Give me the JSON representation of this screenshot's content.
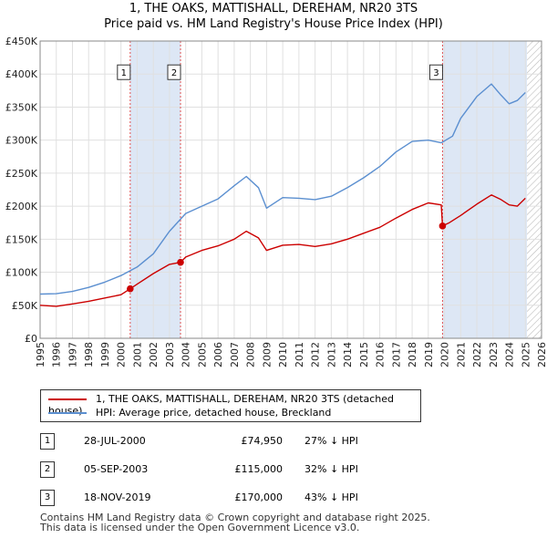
{
  "chart_title_line1": "1, THE OAKS, MATTISHALL, DEREHAM, NR20 3TS",
  "chart_title_line2": "Price paid vs. HM Land Registry's House Price Index (HPI)",
  "chart_data": {
    "type": "line",
    "title": "1, THE OAKS, MATTISHALL, DEREHAM, NR20 3TS — Price paid vs. HM Land Registry's House Price Index (HPI)",
    "xlabel": "",
    "ylabel": "",
    "xlim": [
      1995,
      2026
    ],
    "ylim": [
      0,
      450000
    ],
    "y_ticks": [
      0,
      50000,
      100000,
      150000,
      200000,
      250000,
      300000,
      350000,
      400000,
      450000
    ],
    "y_tick_labels": [
      "£0",
      "£50K",
      "£100K",
      "£150K",
      "£200K",
      "£250K",
      "£300K",
      "£350K",
      "£400K",
      "£450K"
    ],
    "x_ticks": [
      1995,
      1996,
      1997,
      1998,
      1999,
      2000,
      2001,
      2002,
      2003,
      2004,
      2005,
      2006,
      2007,
      2008,
      2009,
      2010,
      2011,
      2012,
      2013,
      2014,
      2015,
      2016,
      2017,
      2018,
      2019,
      2020,
      2021,
      2022,
      2023,
      2024,
      2025,
      2026
    ],
    "x_tick_labels": [
      "1995",
      "1996",
      "1997",
      "1998",
      "1999",
      "2000",
      "2001",
      "2002",
      "2003",
      "2004",
      "2005",
      "2006",
      "2007",
      "2008",
      "2009",
      "2010",
      "2011",
      "2012",
      "2013",
      "2014",
      "2015",
      "2016",
      "2017",
      "2018",
      "2019",
      "2020",
      "2021",
      "2022",
      "2023",
      "2024",
      "2025",
      "2026"
    ],
    "grid": true,
    "shaded_ranges": [
      [
        2000.57,
        2003.68
      ],
      [
        2019.88,
        2025.1
      ]
    ],
    "hatched_range": [
      2025.1,
      2026
    ],
    "series": [
      {
        "name": "1, THE OAKS, MATTISHALL, DEREHAM, NR20 3TS (detached house)",
        "color": "#cc0000",
        "points": [
          [
            1995,
            50000
          ],
          [
            1996,
            48500
          ],
          [
            1997,
            52000
          ],
          [
            1998,
            56000
          ],
          [
            1999,
            61000
          ],
          [
            2000,
            66000
          ],
          [
            2000.57,
            74950
          ],
          [
            2001,
            82000
          ],
          [
            2002,
            98000
          ],
          [
            2003,
            112000
          ],
          [
            2003.68,
            115000
          ],
          [
            2004,
            123000
          ],
          [
            2005,
            133000
          ],
          [
            2006,
            140000
          ],
          [
            2007,
            150000
          ],
          [
            2007.75,
            162000
          ],
          [
            2008.5,
            152000
          ],
          [
            2009,
            133000
          ],
          [
            2010,
            141000
          ],
          [
            2011,
            142000
          ],
          [
            2012,
            139000
          ],
          [
            2013,
            143000
          ],
          [
            2014,
            150000
          ],
          [
            2015,
            159000
          ],
          [
            2016,
            168000
          ],
          [
            2017,
            182000
          ],
          [
            2018,
            195000
          ],
          [
            2019,
            205000
          ],
          [
            2019.8,
            202000
          ],
          [
            2019.88,
            170000
          ],
          [
            2020.3,
            175000
          ],
          [
            2021,
            186000
          ],
          [
            2022,
            203000
          ],
          [
            2022.9,
            217000
          ],
          [
            2023.5,
            210000
          ],
          [
            2024,
            202000
          ],
          [
            2024.5,
            200000
          ],
          [
            2025,
            212000
          ]
        ]
      },
      {
        "name": "HPI: Average price, detached house, Breckland",
        "color": "#5b8fd0",
        "points": [
          [
            1995,
            67000
          ],
          [
            1996,
            67500
          ],
          [
            1997,
            71000
          ],
          [
            1998,
            77000
          ],
          [
            1999,
            85000
          ],
          [
            2000,
            95000
          ],
          [
            2001,
            108000
          ],
          [
            2002,
            128000
          ],
          [
            2003,
            162000
          ],
          [
            2004,
            189000
          ],
          [
            2005,
            200000
          ],
          [
            2006,
            211000
          ],
          [
            2007,
            231000
          ],
          [
            2007.75,
            245000
          ],
          [
            2008.5,
            228000
          ],
          [
            2009,
            197000
          ],
          [
            2010,
            213000
          ],
          [
            2011,
            212000
          ],
          [
            2012,
            210000
          ],
          [
            2013,
            215000
          ],
          [
            2014,
            228000
          ],
          [
            2015,
            243000
          ],
          [
            2016,
            260000
          ],
          [
            2017,
            282000
          ],
          [
            2018,
            298000
          ],
          [
            2019,
            300000
          ],
          [
            2019.8,
            296000
          ],
          [
            2020.5,
            306000
          ],
          [
            2021,
            333000
          ],
          [
            2022,
            366000
          ],
          [
            2022.9,
            385000
          ],
          [
            2023.5,
            368000
          ],
          [
            2024,
            355000
          ],
          [
            2024.5,
            360000
          ],
          [
            2025,
            372000
          ]
        ]
      }
    ],
    "sale_points": [
      {
        "label": "1",
        "x": 2000.57,
        "y": 74950
      },
      {
        "label": "2",
        "x": 2003.68,
        "y": 115000
      },
      {
        "label": "3",
        "x": 2019.88,
        "y": 170000
      }
    ]
  },
  "legend": {
    "series1_label": "1, THE OAKS, MATTISHALL, DEREHAM, NR20 3TS (detached house)",
    "series1_color": "#cc0000",
    "series2_label": "HPI: Average price, detached house, Breckland",
    "series2_color": "#5b8fd0"
  },
  "transactions": [
    {
      "num": "1",
      "date": "28-JUL-2000",
      "price": "£74,950",
      "hpi": "27% ↓ HPI"
    },
    {
      "num": "2",
      "date": "05-SEP-2003",
      "price": "£115,000",
      "hpi": "32% ↓ HPI"
    },
    {
      "num": "3",
      "date": "18-NOV-2019",
      "price": "£170,000",
      "hpi": "43% ↓ HPI"
    }
  ],
  "footer_line1": "Contains HM Land Registry data © Crown copyright and database right 2025.",
  "footer_line2": "This data is licensed under the Open Government Licence v3.0."
}
